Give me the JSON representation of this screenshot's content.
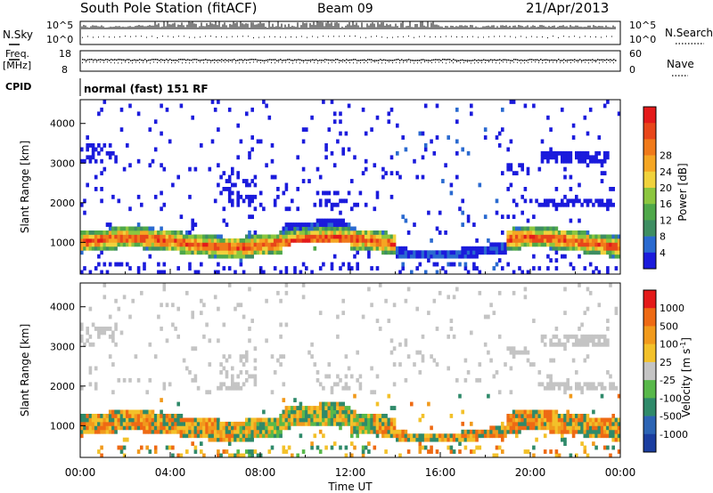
{
  "header": {
    "station": "South Pole Station (fitACF)",
    "beam": "Beam 09",
    "date": "21/Apr/2013"
  },
  "top_panel": {
    "left_label": "N.Sky",
    "right_label": "N.Search",
    "left_ticks": [
      "10^5",
      "10^0"
    ],
    "right_ticks": [
      "10^5",
      "10^0"
    ]
  },
  "freq_panel": {
    "left_label_1": "Freq.",
    "left_label_2": "[MHz]",
    "right_label": "Nave",
    "left_ticks": [
      "18",
      "8"
    ],
    "right_ticks": [
      "60",
      "0"
    ]
  },
  "cpid": {
    "label": "CPID",
    "value": "normal (fast) 151 RF"
  },
  "chart_data": [
    {
      "type": "heatmap",
      "name": "power",
      "ylabel": "Slant Range [km]",
      "ylim": [
        200,
        4600
      ],
      "yticks": [
        1000,
        2000,
        3000,
        4000
      ],
      "xlim": [
        0,
        24
      ],
      "colorbar": {
        "label": "Power [dB]",
        "ticks": [
          "4",
          "8",
          "12",
          "16",
          "20",
          "24",
          "28"
        ],
        "colors": [
          "#1b1bdc",
          "#2a6ad0",
          "#3e8e62",
          "#4fa84a",
          "#8cc63f",
          "#f0d23c",
          "#f5a623",
          "#f07a1a",
          "#e8461a",
          "#e41a1a"
        ]
      }
    },
    {
      "type": "heatmap",
      "name": "velocity",
      "ylabel": "Slant Range [km]",
      "ylim": [
        200,
        4600
      ],
      "yticks": [
        1000,
        2000,
        3000,
        4000
      ],
      "xlim": [
        0,
        24
      ],
      "colorbar": {
        "label": "Velocity [m s",
        "label_sup": "-1",
        "label_end": "]",
        "ticks": [
          "1000",
          "500",
          "100",
          "25",
          "-25",
          "-100",
          "-500",
          "-1000"
        ],
        "colors": [
          "#1b3ea0",
          "#2c64b4",
          "#2f8a6a",
          "#58b84a",
          "#c4c4c4",
          "#f3c12a",
          "#f19a1c",
          "#ee6a14",
          "#e41a1a"
        ]
      }
    }
  ],
  "x_axis": {
    "ticks": [
      "00:00",
      "04:00",
      "08:00",
      "12:00",
      "16:00",
      "20:00",
      "00:00"
    ],
    "label": "Time UT"
  }
}
